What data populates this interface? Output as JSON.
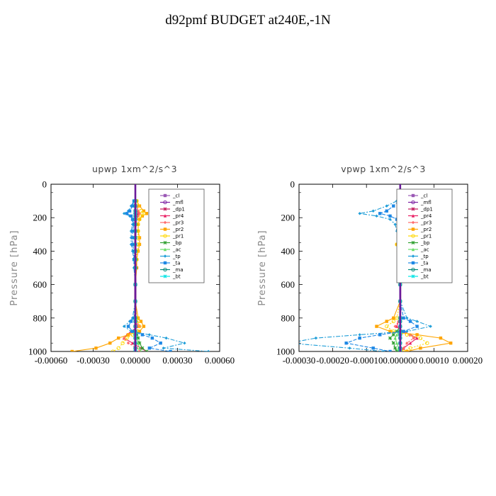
{
  "title": "d92pmf  BUDGET at240E,-1N",
  "legend_entries": [
    "_cl",
    "_mfl",
    "_dp1",
    "_pr4",
    "_pr3",
    "_pr2",
    "_pr1",
    "_bp",
    "_ac",
    "_tp",
    "_ta",
    "_ma",
    "_bt"
  ],
  "legend_colors": [
    "#9b59b6",
    "#7b1fa2",
    "#c2185b",
    "#e91e63",
    "#ff6b6b",
    "#ffa500",
    "#ffd700",
    "#2e9e2e",
    "#66dd66",
    "#1f9ed8",
    "#1e88e5",
    "#00897b",
    "#00e5e5"
  ],
  "chart_data": [
    {
      "type": "line",
      "title": "upwp   1xm^2/s^3",
      "ylabel": "Pressure [hPa]",
      "xlabel": "",
      "xlim": [
        -0.0006,
        0.0006
      ],
      "ylim": [
        1000,
        0
      ],
      "x_ticks": [
        "-0.00060",
        "-0.00030",
        "0.00000",
        "0.00030",
        "0.00060"
      ],
      "y_ticks": [
        "0",
        "200",
        "400",
        "600",
        "800",
        "1000"
      ],
      "legend": "top-right",
      "levels": [
        100,
        130,
        160,
        175,
        190,
        210,
        240,
        280,
        320,
        360,
        400,
        450,
        500,
        600,
        700,
        800,
        820,
        850,
        880,
        900,
        920,
        950,
        980,
        1000
      ],
      "series": [
        {
          "name": "_cl",
          "values": [
            0,
            0,
            0,
            0,
            0,
            0,
            0,
            0,
            0,
            0,
            0,
            0,
            0,
            0,
            0,
            0,
            0,
            0,
            0,
            0,
            0,
            0,
            0,
            0
          ]
        },
        {
          "name": "_mfl",
          "values": [
            0,
            0,
            0,
            0,
            0,
            0,
            0,
            0,
            0,
            0,
            0,
            0,
            0,
            0,
            0,
            0,
            0,
            0,
            0,
            0,
            0,
            0,
            0,
            0
          ]
        },
        {
          "name": "_dp1",
          "values": [
            0,
            0,
            0,
            0,
            0,
            0,
            0,
            0,
            0,
            0,
            0,
            0,
            0,
            0,
            0,
            0,
            0,
            0,
            0,
            0,
            0,
            0,
            0,
            0
          ]
        },
        {
          "name": "_pr4",
          "values": [
            0,
            1e-05,
            2e-05,
            2e-05,
            1e-05,
            0,
            0,
            0,
            0,
            0,
            0,
            0,
            0,
            0,
            0,
            0,
            0,
            2e-05,
            -3e-05,
            -6e-05,
            -8e-05,
            -2e-05,
            4e-05,
            8e-05
          ]
        },
        {
          "name": "_pr3",
          "values": [
            0,
            1e-05,
            2e-05,
            3e-05,
            2e-05,
            1e-05,
            1e-05,
            0,
            0,
            0,
            0,
            0,
            0,
            0,
            0,
            0,
            1e-05,
            3e-05,
            -2e-05,
            -5e-05,
            -8e-05,
            -5e-05,
            1e-05,
            3e-05
          ]
        },
        {
          "name": "_pr2",
          "values": [
            1e-05,
            3e-05,
            6e-05,
            8e-05,
            5e-05,
            3e-05,
            2e-05,
            2e-05,
            3e-05,
            3e-05,
            2e-05,
            1e-05,
            1e-05,
            0,
            0,
            2e-05,
            4e-05,
            6e-05,
            3e-05,
            -5e-05,
            -0.00012,
            -0.00018,
            -0.00028,
            -0.00045
          ]
        },
        {
          "name": "_pr1",
          "values": [
            1e-05,
            2e-05,
            4e-05,
            6e-05,
            4e-05,
            3e-05,
            2e-05,
            2e-05,
            2e-05,
            2e-05,
            1e-05,
            1e-05,
            0,
            0,
            0,
            1e-05,
            2e-05,
            3e-05,
            1e-05,
            -2e-05,
            -6e-05,
            -9e-05,
            -0.00012,
            -0.00016
          ]
        },
        {
          "name": "_bp",
          "values": [
            0,
            0,
            0,
            0,
            0,
            0,
            0,
            0,
            0,
            0,
            0,
            0,
            0,
            0,
            0,
            0,
            0,
            0,
            0,
            1e-05,
            2e-05,
            3e-05,
            5e-05,
            8e-05
          ]
        },
        {
          "name": "_ac",
          "values": [
            0,
            0,
            0,
            0,
            0,
            0,
            0,
            0,
            0,
            0,
            0,
            0,
            0,
            0,
            0,
            0,
            0,
            0,
            0,
            0,
            1e-05,
            2e-05,
            3e-05,
            4e-05
          ]
        },
        {
          "name": "_tp",
          "values": [
            -1e-05,
            -3e-05,
            -5e-05,
            -8e-05,
            -4e-05,
            -2e-05,
            -2e-05,
            -3e-05,
            -3e-05,
            -3e-05,
            -2e-05,
            -1e-05,
            -1e-05,
            0,
            0,
            -2e-05,
            -4e-05,
            -8e-05,
            -3e-05,
            0.0001,
            0.00022,
            0.00035,
            0.0002,
            0.00052
          ]
        },
        {
          "name": "_ta",
          "values": [
            -1e-05,
            -2e-05,
            -4e-05,
            -6e-05,
            -3e-05,
            -2e-05,
            -1e-05,
            -2e-05,
            -2e-05,
            -2e-05,
            -1e-05,
            -1e-05,
            0,
            0,
            0,
            -1e-05,
            -3e-05,
            -5e-05,
            -2e-05,
            5e-05,
            0.00012,
            0.00018,
            0.0001,
            0.00025
          ]
        },
        {
          "name": "_ma",
          "values": [
            0,
            0,
            0,
            0,
            0,
            0,
            0,
            0,
            0,
            0,
            0,
            0,
            0,
            0,
            0,
            0,
            0,
            0,
            0,
            0,
            0,
            0,
            0,
            0
          ]
        },
        {
          "name": "_bt",
          "values": [
            0,
            0,
            0,
            0,
            0,
            0,
            0,
            0,
            0,
            0,
            0,
            0,
            0,
            0,
            0,
            0,
            0,
            0,
            0,
            0,
            0,
            0,
            0,
            0
          ]
        }
      ]
    },
    {
      "type": "line",
      "title": "vpwp   1xm^2/s^3",
      "ylabel": "Pressure [hPa]",
      "xlabel": "",
      "xlim": [
        -0.0003,
        0.0002
      ],
      "ylim": [
        1000,
        0
      ],
      "x_ticks": [
        "-0.00030",
        "-0.00020",
        "-0.00010",
        "0.000000",
        "0.00010",
        "0.00020"
      ],
      "y_ticks": [
        "0",
        "200",
        "400",
        "600",
        "800",
        "1000"
      ],
      "legend": "top-right",
      "levels": [
        100,
        130,
        160,
        175,
        190,
        210,
        240,
        280,
        320,
        360,
        400,
        450,
        500,
        600,
        700,
        800,
        820,
        850,
        880,
        900,
        920,
        950,
        980,
        1000
      ],
      "series": [
        {
          "name": "_cl",
          "values": [
            0,
            0,
            0,
            0,
            0,
            0,
            0,
            0,
            0,
            0,
            0,
            0,
            0,
            0,
            0,
            0,
            0,
            0,
            0,
            0,
            0,
            0,
            0,
            0
          ]
        },
        {
          "name": "_mfl",
          "values": [
            0,
            0,
            0,
            0,
            0,
            0,
            0,
            0,
            0,
            0,
            0,
            0,
            0,
            0,
            0,
            0,
            0,
            0,
            0,
            0,
            0,
            0,
            0,
            0
          ]
        },
        {
          "name": "_dp1",
          "values": [
            0,
            0,
            0,
            0,
            0,
            0,
            0,
            0,
            0,
            0,
            0,
            0,
            0,
            0,
            0,
            0,
            0,
            0,
            0,
            0,
            0,
            0,
            0,
            0
          ]
        },
        {
          "name": "_pr4",
          "values": [
            0,
            5e-06,
            1e-05,
            1e-05,
            5e-06,
            0,
            0,
            0,
            0,
            0,
            0,
            0,
            0,
            0,
            0,
            0,
            -5e-06,
            -1e-05,
            1e-05,
            3e-05,
            5e-05,
            3e-05,
            1e-05,
            0
          ]
        },
        {
          "name": "_pr3",
          "values": [
            0,
            5e-06,
            1e-05,
            1.5e-05,
            1e-05,
            5e-06,
            0,
            0,
            0,
            0,
            0,
            0,
            0,
            0,
            0,
            0,
            -5e-06,
            -1.5e-05,
            1e-05,
            3e-05,
            4e-05,
            2e-05,
            1e-05,
            5e-06
          ]
        },
        {
          "name": "_pr2",
          "values": [
            0,
            1e-05,
            2e-05,
            3e-05,
            2e-05,
            1e-05,
            5e-06,
            0,
            -5e-06,
            -1e-05,
            -5e-06,
            0,
            0,
            0,
            0,
            -2e-05,
            -4e-05,
            -7e-05,
            -3e-05,
            5e-05,
            0.00012,
            0.00015,
            6e-05,
            2e-05
          ]
        },
        {
          "name": "_pr1",
          "values": [
            0,
            5e-06,
            1e-05,
            2e-05,
            1e-05,
            5e-06,
            0,
            0,
            -5e-06,
            -1e-05,
            -5e-06,
            0,
            0,
            0,
            0,
            -1e-05,
            -2e-05,
            -4e-05,
            -2e-05,
            2e-05,
            6e-05,
            8e-05,
            3e-05,
            1e-05
          ]
        },
        {
          "name": "_bp",
          "values": [
            0,
            0,
            0,
            0,
            0,
            0,
            0,
            0,
            0,
            0,
            0,
            0,
            0,
            0,
            0,
            0,
            0,
            0,
            -1e-05,
            -2e-05,
            -3e-05,
            -2e-05,
            -1.5e-05,
            -1e-05
          ]
        },
        {
          "name": "_ac",
          "values": [
            0,
            0,
            0,
            0,
            0,
            0,
            0,
            0,
            0,
            0,
            0,
            0,
            0,
            0,
            0,
            0,
            0,
            0,
            0,
            -1e-05,
            -1.5e-05,
            -1e-05,
            -5e-06,
            -5e-06
          ]
        },
        {
          "name": "_tp",
          "values": [
            -1e-05,
            -4e-05,
            -8e-05,
            -0.00012,
            -7e-05,
            -3e-05,
            -1.5e-05,
            -1e-05,
            -5e-06,
            0,
            0,
            0,
            0,
            0,
            0,
            2e-05,
            5e-05,
            9e-05,
            2e-05,
            -0.00012,
            -0.00025,
            -0.00033,
            -0.00015,
            -5e-05
          ]
        },
        {
          "name": "_ta",
          "values": [
            -5e-06,
            -2e-05,
            -4e-05,
            -6e-05,
            -3e-05,
            -1e-05,
            -5e-06,
            0,
            0,
            0,
            0,
            0,
            0,
            0,
            0,
            1e-05,
            3e-05,
            5e-05,
            1e-05,
            -6e-05,
            -0.00012,
            -0.00016,
            -8e-05,
            -3e-05
          ]
        },
        {
          "name": "_ma",
          "values": [
            0,
            0,
            0,
            0,
            0,
            0,
            0,
            0,
            0,
            0,
            0,
            0,
            0,
            0,
            0,
            0,
            0,
            0,
            0,
            0,
            0,
            0,
            0,
            0
          ]
        },
        {
          "name": "_bt",
          "values": [
            0,
            0,
            0,
            0,
            0,
            0,
            0,
            0,
            0,
            0,
            0,
            0,
            0,
            0,
            0,
            0,
            0,
            0,
            0,
            0,
            0,
            0,
            0,
            0
          ]
        }
      ]
    }
  ]
}
